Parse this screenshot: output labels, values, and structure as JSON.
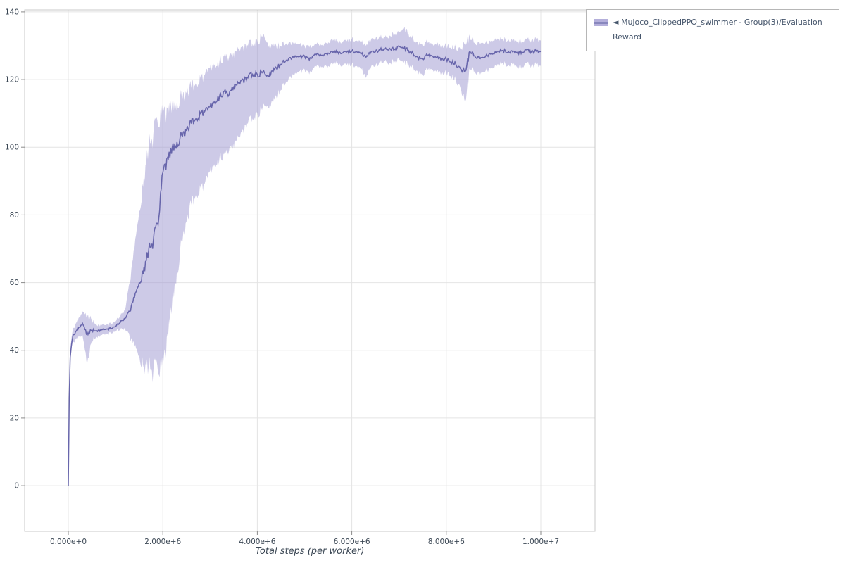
{
  "legend": {
    "marker": "◄",
    "label": "Mujoco_ClippedPPO_swimmer - Group(3)/Evaluation Reward"
  },
  "colors": {
    "grid": "#e4e4e4",
    "frame": "#c8c8c8",
    "tick": "#8a8a8a",
    "tick_text": "#3b4754"
  },
  "chart_data": {
    "type": "line",
    "title": "",
    "xlabel": "Total steps (per worker)",
    "ylabel": "",
    "grid": true,
    "legend_position": "top-right",
    "xlim": [
      -924000,
      11147000
    ],
    "ylim": [
      -13.5,
      140.6
    ],
    "xticks": {
      "values": [
        0,
        2000000,
        4000000,
        6000000,
        8000000,
        10000000
      ],
      "labels": [
        "0.000e+0",
        "2.000e+6",
        "4.000e+6",
        "6.000e+6",
        "8.000e+6",
        "1.000e+7"
      ]
    },
    "yticks": {
      "values": [
        0,
        20,
        40,
        60,
        80,
        100,
        120,
        140
      ],
      "labels": [
        "0",
        "20",
        "40",
        "60",
        "80",
        "100",
        "120",
        "140"
      ]
    },
    "series": [
      {
        "name": "Mujoco_ClippedPPO_swimmer - Group(3)/Evaluation Reward",
        "line_color": "#615fa8",
        "band_color": "#9b95cf",
        "band_opacity": 0.5,
        "x_scale": 1000000,
        "x_unit": "steps",
        "x": [
          0,
          0.02,
          0.04,
          0.07,
          0.1,
          0.2,
          0.3,
          0.4,
          0.5,
          0.6,
          0.7,
          0.8,
          0.9,
          1.0,
          1.1,
          1.2,
          1.3,
          1.4,
          1.5,
          1.6,
          1.7,
          1.8,
          1.9,
          2.0,
          2.1,
          2.2,
          2.3,
          2.4,
          2.5,
          2.6,
          2.7,
          2.8,
          2.9,
          3.0,
          3.1,
          3.2,
          3.3,
          3.4,
          3.5,
          3.6,
          3.7,
          3.8,
          3.9,
          4.0,
          4.1,
          4.2,
          4.3,
          4.4,
          4.5,
          4.6,
          4.7,
          4.8,
          4.9,
          5.0,
          5.1,
          5.2,
          5.3,
          5.4,
          5.5,
          5.6,
          5.7,
          5.8,
          5.9,
          6.0,
          6.1,
          6.2,
          6.3,
          6.4,
          6.5,
          6.6,
          6.7,
          6.8,
          6.9,
          7.0,
          7.1,
          7.2,
          7.3,
          7.4,
          7.5,
          7.6,
          7.7,
          7.8,
          7.9,
          8.0,
          8.1,
          8.2,
          8.3,
          8.4,
          8.5,
          8.6,
          8.7,
          8.8,
          8.9,
          9.0,
          9.1,
          9.2,
          9.3,
          9.4,
          9.5,
          9.6,
          9.7,
          9.8,
          9.9,
          10.0
        ],
        "mean": [
          0.0,
          26.0,
          38.0,
          42.0,
          44.5,
          46.0,
          48.0,
          44.5,
          46.0,
          45.8,
          46.0,
          46.2,
          46.4,
          47.0,
          48.2,
          49.5,
          51.5,
          55.5,
          60.0,
          64.5,
          69.5,
          72.5,
          77.0,
          92.5,
          97.0,
          100.0,
          101.5,
          103.5,
          105.0,
          107.0,
          108.5,
          110.0,
          111.0,
          112.0,
          113.5,
          115.0,
          116.5,
          115.5,
          118.0,
          119.0,
          120.0,
          120.5,
          121.5,
          121.5,
          122.0,
          121.0,
          122.5,
          123.5,
          124.5,
          125.5,
          126.5,
          127.0,
          126.8,
          127.0,
          125.8,
          127.2,
          127.4,
          127.0,
          127.8,
          128.0,
          128.2,
          127.8,
          128.2,
          128.4,
          128.2,
          127.6,
          126.6,
          128.0,
          128.2,
          128.8,
          129.0,
          129.2,
          129.0,
          129.8,
          129.2,
          128.6,
          127.6,
          126.6,
          126.2,
          127.2,
          127.0,
          126.6,
          126.2,
          126.0,
          125.2,
          124.6,
          123.2,
          122.4,
          128.4,
          127.0,
          126.2,
          126.4,
          127.4,
          127.6,
          128.4,
          128.6,
          128.0,
          128.2,
          127.8,
          128.2,
          128.8,
          128.2,
          128.4,
          128.2
        ],
        "lower": [
          0.0,
          25.0,
          36.0,
          41.0,
          42.5,
          43.5,
          44.5,
          36.0,
          43.0,
          44.0,
          44.5,
          44.8,
          45.0,
          45.5,
          46.0,
          46.5,
          44.0,
          41.0,
          38.5,
          36.5,
          35.0,
          34.0,
          33.0,
          35.0,
          45.0,
          55.0,
          64.0,
          72.0,
          78.0,
          83.0,
          86.0,
          88.0,
          90.0,
          93.0,
          95.0,
          97.0,
          98.0,
          99.0,
          101.0,
          103.0,
          105.0,
          107.0,
          108.5,
          110.0,
          111.0,
          112.0,
          113.5,
          115.0,
          117.0,
          119.0,
          121.0,
          122.0,
          122.5,
          123.0,
          121.5,
          123.5,
          124.0,
          123.5,
          124.0,
          124.5,
          125.0,
          124.0,
          124.5,
          124.5,
          124.0,
          123.0,
          120.5,
          123.5,
          124.0,
          125.0,
          125.5,
          125.0,
          125.5,
          126.0,
          125.0,
          124.5,
          123.5,
          122.5,
          121.5,
          123.0,
          123.0,
          122.5,
          122.0,
          122.0,
          121.0,
          120.0,
          117.5,
          113.5,
          123.5,
          122.5,
          121.5,
          122.0,
          123.0,
          123.5,
          124.5,
          125.0,
          124.0,
          124.5,
          123.5,
          124.0,
          125.0,
          124.0,
          124.5,
          124.0
        ],
        "upper": [
          1.0,
          27.0,
          40.0,
          44.0,
          46.5,
          48.5,
          51.5,
          50.0,
          49.0,
          47.5,
          47.5,
          47.5,
          47.8,
          48.5,
          50.0,
          52.0,
          60.0,
          70.0,
          81.0,
          92.0,
          100.0,
          104.0,
          106.0,
          110.0,
          111.5,
          113.0,
          114.0,
          115.0,
          116.0,
          117.5,
          119.0,
          120.5,
          122.0,
          123.5,
          124.5,
          125.5,
          127.0,
          126.5,
          128.0,
          129.0,
          129.5,
          130.0,
          130.5,
          131.5,
          132.5,
          131.0,
          130.5,
          130.0,
          130.0,
          130.5,
          131.0,
          131.0,
          130.5,
          130.0,
          129.5,
          130.0,
          130.5,
          130.0,
          131.0,
          131.5,
          131.5,
          131.0,
          131.5,
          132.0,
          131.5,
          131.0,
          130.0,
          131.5,
          132.0,
          132.5,
          132.5,
          133.0,
          133.5,
          134.0,
          135.0,
          133.5,
          132.0,
          131.0,
          130.5,
          131.0,
          130.5,
          130.5,
          130.0,
          130.0,
          129.5,
          129.5,
          129.0,
          131.0,
          132.5,
          131.0,
          130.5,
          130.5,
          131.0,
          131.5,
          132.0,
          132.0,
          131.5,
          131.5,
          131.0,
          131.5,
          132.0,
          131.5,
          132.0,
          131.5
        ]
      }
    ]
  }
}
